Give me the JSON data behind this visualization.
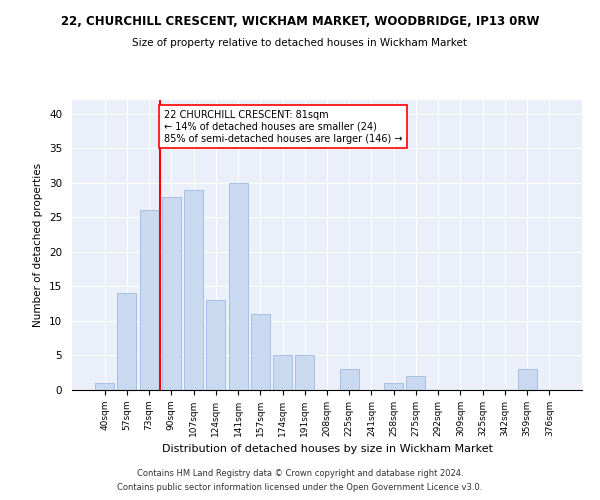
{
  "title1": "22, CHURCHILL CRESCENT, WICKHAM MARKET, WOODBRIDGE, IP13 0RW",
  "title2": "Size of property relative to detached houses in Wickham Market",
  "xlabel": "Distribution of detached houses by size in Wickham Market",
  "ylabel": "Number of detached properties",
  "categories": [
    "40sqm",
    "57sqm",
    "73sqm",
    "90sqm",
    "107sqm",
    "124sqm",
    "141sqm",
    "157sqm",
    "174sqm",
    "191sqm",
    "208sqm",
    "225sqm",
    "241sqm",
    "258sqm",
    "275sqm",
    "292sqm",
    "309sqm",
    "325sqm",
    "342sqm",
    "359sqm",
    "376sqm"
  ],
  "values": [
    1,
    14,
    26,
    28,
    29,
    13,
    30,
    11,
    5,
    5,
    0,
    3,
    0,
    1,
    2,
    0,
    0,
    0,
    0,
    3,
    0
  ],
  "bar_color": "#c9d9f0",
  "bar_edge_color": "#a0b8e0",
  "red_line_index": 2.5,
  "annotation_text": "22 CHURCHILL CRESCENT: 81sqm\n← 14% of detached houses are smaller (24)\n85% of semi-detached houses are larger (146) →",
  "ylim": [
    0,
    42
  ],
  "yticks": [
    0,
    5,
    10,
    15,
    20,
    25,
    30,
    35,
    40
  ],
  "background_color": "#eaeff9",
  "footnote1": "Contains HM Land Registry data © Crown copyright and database right 2024.",
  "footnote2": "Contains public sector information licensed under the Open Government Licence v3.0."
}
